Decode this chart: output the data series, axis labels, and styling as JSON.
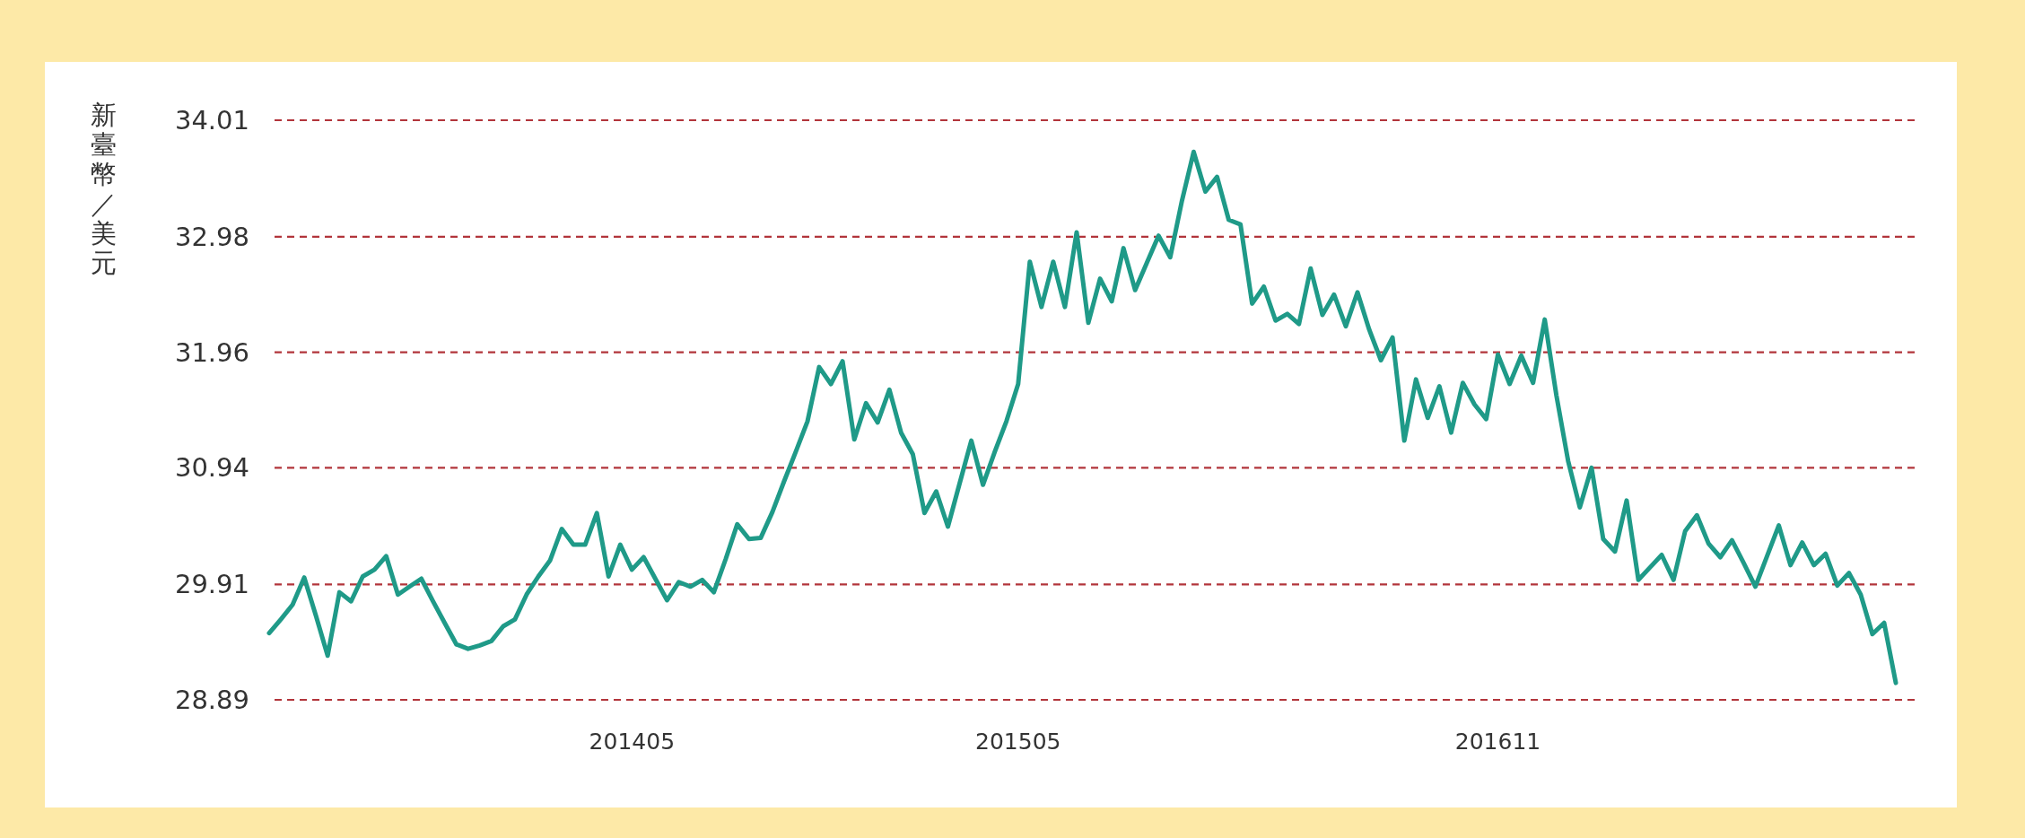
{
  "chart_data": {
    "type": "line",
    "ylabel": "新臺幣／美元",
    "color": "#1f9a88",
    "grid": "y",
    "categories": [
      null,
      null,
      null,
      null,
      null,
      null,
      null,
      null,
      null,
      null,
      null,
      null,
      null,
      null,
      null,
      null,
      null,
      null,
      null,
      null,
      null,
      null,
      null,
      null,
      null,
      null,
      null,
      null,
      null,
      null,
      null,
      "201405",
      null,
      null,
      null,
      null,
      null,
      null,
      null,
      null,
      null,
      null,
      null,
      null,
      null,
      null,
      null,
      null,
      null,
      null,
      null,
      null,
      null,
      null,
      null,
      null,
      null,
      null,
      null,
      null,
      null,
      null,
      null,
      null,
      "201505",
      null,
      null,
      null,
      null,
      null,
      null,
      null,
      null,
      null,
      null,
      null,
      null,
      null,
      null,
      null,
      null,
      null,
      null,
      null,
      null,
      null,
      null,
      null,
      null,
      null,
      null,
      null,
      null,
      null,
      null,
      null,
      null,
      null,
      null,
      null,
      null,
      null,
      null,
      null,
      null,
      "201611",
      null,
      null,
      null,
      null,
      null,
      null,
      null,
      null,
      null,
      null,
      null,
      null,
      null,
      null,
      null,
      null,
      null,
      null,
      null,
      null,
      null,
      null,
      null,
      null,
      null,
      null,
      null,
      null,
      null,
      null,
      null,
      null,
      null,
      null
    ],
    "values": [
      29.48,
      29.6,
      29.73,
      29.97,
      29.63,
      29.28,
      29.84,
      29.76,
      29.98,
      30.04,
      30.16,
      29.82,
      29.89,
      29.96,
      29.76,
      29.57,
      29.38,
      29.34,
      29.37,
      29.41,
      29.54,
      29.6,
      29.82,
      29.98,
      30.12,
      30.4,
      30.26,
      30.26,
      30.54,
      29.98,
      30.26,
      30.04,
      30.15,
      29.96,
      29.77,
      29.93,
      29.89,
      29.95,
      29.84,
      30.13,
      30.44,
      30.31,
      30.32,
      30.55,
      30.82,
      31.08,
      31.35,
      31.83,
      31.68,
      31.88,
      31.19,
      31.51,
      31.34,
      31.63,
      31.25,
      31.06,
      30.54,
      30.73,
      30.42,
      30.8,
      31.18,
      30.79,
      31.08,
      31.35,
      31.68,
      32.76,
      32.36,
      32.76,
      32.36,
      33.02,
      32.22,
      32.61,
      32.41,
      32.88,
      32.51,
      32.75,
      32.99,
      32.8,
      33.3,
      33.73,
      33.38,
      33.51,
      33.13,
      33.09,
      32.39,
      32.54,
      32.24,
      32.3,
      32.21,
      32.7,
      32.29,
      32.47,
      32.19,
      32.49,
      32.16,
      31.89,
      32.09,
      31.18,
      31.72,
      31.38,
      31.66,
      31.25,
      31.69,
      31.5,
      31.37,
      31.94,
      31.68,
      31.93,
      31.69,
      32.25,
      31.58,
      31.0,
      30.59,
      30.94,
      30.31,
      30.2,
      30.65,
      29.95,
      30.06,
      30.17,
      29.95,
      30.38,
      30.52,
      30.27,
      30.15,
      30.3,
      30.1,
      29.89,
      30.16,
      30.43,
      30.08,
      30.28,
      30.08,
      30.18,
      29.9,
      30.01,
      29.82,
      29.47,
      29.57,
      29.04
    ],
    "ylim": [
      28.89,
      34.01
    ],
    "yticks": [
      28.89,
      29.91,
      30.94,
      31.96,
      32.98,
      34.01
    ]
  }
}
